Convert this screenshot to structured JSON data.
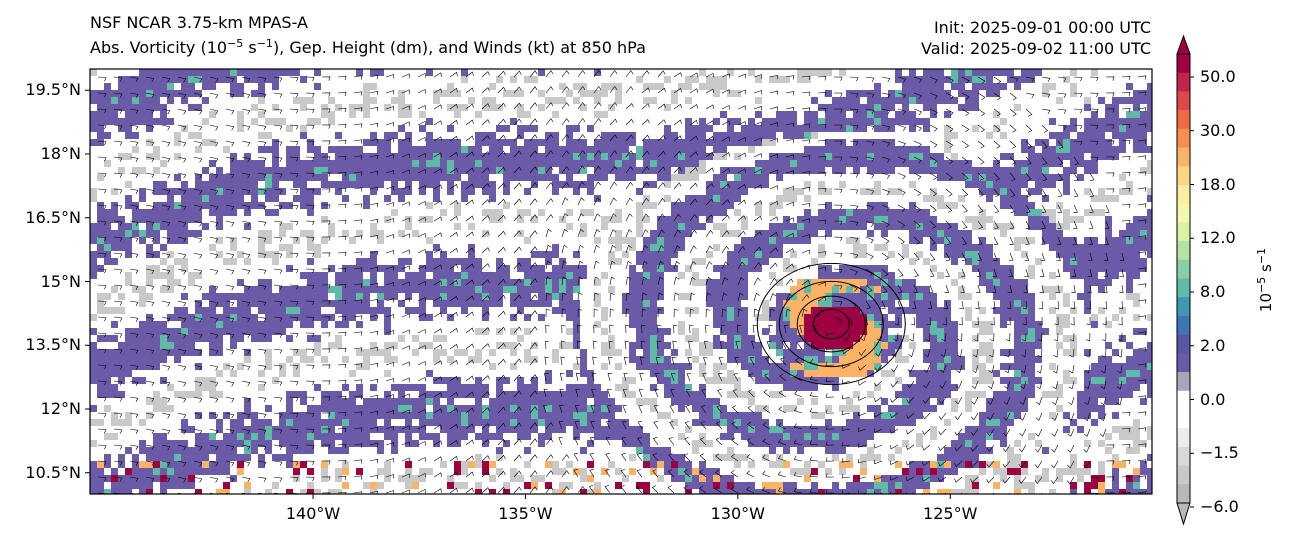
{
  "title": {
    "model": "NSF NCAR 3.75-km MPAS-A",
    "fields_pre": "Abs. Vorticity (10",
    "fields_exp1": "−5",
    "fields_mid": " s",
    "fields_exp2": "−1",
    "fields_post": "), Gep. Height (dm), and Winds (kt) at 850 hPa",
    "init": "Init: 2025-09-01 00:00 UTC",
    "valid": "Valid: 2025-09-02 11:00 UTC"
  },
  "axes": {
    "lat_ticks": [
      {
        "value": 19.5,
        "label": "19.5°N"
      },
      {
        "value": 18,
        "label": "18°N"
      },
      {
        "value": 16.5,
        "label": "16.5°N"
      },
      {
        "value": 15,
        "label": "15°N"
      },
      {
        "value": 13.5,
        "label": "13.5°N"
      },
      {
        "value": 12,
        "label": "12°N"
      },
      {
        "value": 10.5,
        "label": "10.5°N"
      }
    ],
    "lon_ticks": [
      {
        "value": -140,
        "label": "140°W"
      },
      {
        "value": -135,
        "label": "135°W"
      },
      {
        "value": -130,
        "label": "130°W"
      },
      {
        "value": -125,
        "label": "125°W"
      }
    ],
    "lon_range": [
      -145.25,
      -120.25
    ],
    "lat_range": [
      10.0,
      20.0
    ]
  },
  "colorbar": {
    "title_base": "10",
    "title_exp1": "−5",
    "title_mid": " s",
    "title_exp2": "−1",
    "extend": "both",
    "tick_labels": [
      {
        "value": 50,
        "label": "50.0"
      },
      {
        "value": 30,
        "label": "30.0"
      },
      {
        "value": 18,
        "label": "18.0"
      },
      {
        "value": 12,
        "label": "12.0"
      },
      {
        "value": 8,
        "label": "8.0"
      },
      {
        "value": 2,
        "label": "2.0"
      },
      {
        "value": 0,
        "label": "0.0"
      },
      {
        "value": -1.5,
        "label": "−1.5"
      },
      {
        "value": -6,
        "label": "−6.0"
      }
    ],
    "colors_top_to_bottom": [
      "#9e0142",
      "#c0244a",
      "#dc494c",
      "#ee6a45",
      "#f88d52",
      "#fdb365",
      "#fed481",
      "#feec9f",
      "#f3f9ab",
      "#dcf09e",
      "#b5e1a2",
      "#88cfa4",
      "#5fbaa8",
      "#3e98b3",
      "#4075b4",
      "#5956a6",
      "#6a5aa8",
      "#a6a6b8",
      "#ffffff",
      "#ffffff",
      "#ececec",
      "#d9d9d9",
      "#c8c8c8",
      "#b8b8b8"
    ]
  },
  "map": {
    "cyclone_center": {
      "lon": -127.8,
      "lat": 14.0
    },
    "field_colors": {
      "neg": "#c9c9c9",
      "weak": "#6a5aa8",
      "mid": "#5fbaa8",
      "high": "#fdb365",
      "max": "#9e0142"
    }
  }
}
